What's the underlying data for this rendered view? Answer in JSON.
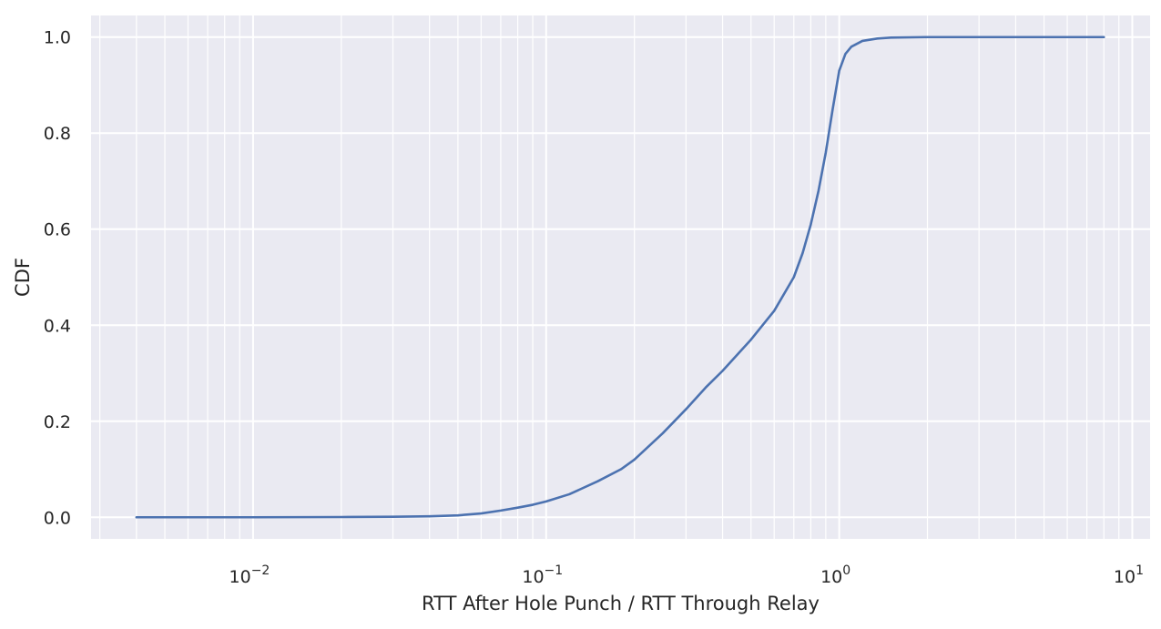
{
  "chart_data": {
    "type": "line",
    "title": "",
    "xlabel": "RTT After Hole Punch / RTT Through Relay",
    "ylabel": "CDF",
    "xscale": "log",
    "xlim": [
      0.0028,
      11.5
    ],
    "ylim": [
      -0.045,
      1.045
    ],
    "grid": true,
    "grid_style": "major-and-minor",
    "legend": "none",
    "colors": {
      "background": "#eaeaf2",
      "grid": "#ffffff",
      "line": "#4c72b0",
      "text": "#262626"
    },
    "x_ticks": [
      {
        "value": 0.01,
        "base": "10",
        "exp": "−2"
      },
      {
        "value": 0.1,
        "base": "10",
        "exp": "−1"
      },
      {
        "value": 1,
        "base": "10",
        "exp": "0"
      },
      {
        "value": 10,
        "base": "10",
        "exp": "1"
      }
    ],
    "y_ticks": [
      {
        "value": 0.0,
        "label": "0.0"
      },
      {
        "value": 0.2,
        "label": "0.2"
      },
      {
        "value": 0.4,
        "label": "0.4"
      },
      {
        "value": 0.6,
        "label": "0.6"
      },
      {
        "value": 0.8,
        "label": "0.8"
      },
      {
        "value": 1.0,
        "label": "1.0"
      }
    ],
    "series": [
      {
        "x": [
          0.004,
          0.01,
          0.02,
          0.03,
          0.04,
          0.05,
          0.06,
          0.07,
          0.08,
          0.09,
          0.1,
          0.12,
          0.15,
          0.18,
          0.2,
          0.25,
          0.3,
          0.35,
          0.4,
          0.5,
          0.6,
          0.7,
          0.75,
          0.8,
          0.85,
          0.9,
          0.95,
          1.0,
          1.05,
          1.1,
          1.2,
          1.35,
          1.5,
          2.0,
          3.0,
          5.0,
          8.0
        ],
        "y": [
          0.0,
          0.0,
          0.0005,
          0.001,
          0.002,
          0.004,
          0.008,
          0.014,
          0.02,
          0.026,
          0.033,
          0.048,
          0.075,
          0.1,
          0.12,
          0.175,
          0.225,
          0.27,
          0.305,
          0.37,
          0.43,
          0.5,
          0.55,
          0.61,
          0.68,
          0.76,
          0.85,
          0.93,
          0.965,
          0.98,
          0.992,
          0.997,
          0.999,
          1.0,
          1.0,
          1.0,
          1.0
        ]
      }
    ]
  }
}
